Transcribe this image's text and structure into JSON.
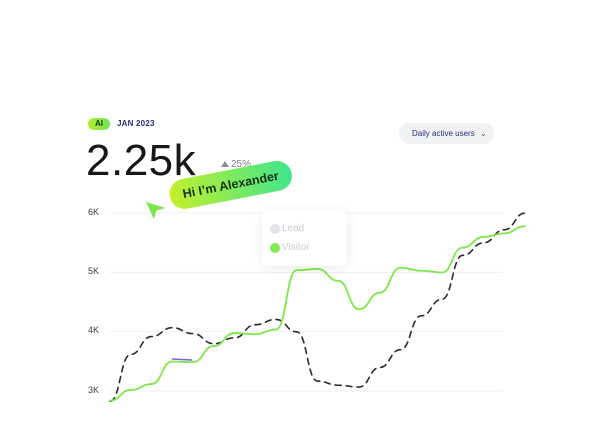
{
  "header": {
    "badge": "AI",
    "date": "JAN 2023",
    "metric_value": "2.25k",
    "delta": "25%"
  },
  "metric_dropdown": {
    "label": "Daily active users",
    "icon": "chevron-down-icon"
  },
  "tooltip": {
    "items": [
      {
        "label": "Lead",
        "color": "#e3e4e7"
      },
      {
        "label": "Visitor",
        "color": "#7ee84a"
      }
    ]
  },
  "cursor_label": "Hi I’m Alexander",
  "colors": {
    "accent": "#7ee84a",
    "lead": "#2b2b2f",
    "selection": "#6f6ad8"
  },
  "chart_data": {
    "type": "line",
    "y_ticks": [
      "6K",
      "5K",
      "4K",
      "3K"
    ],
    "ylim": [
      2800,
      6400
    ],
    "grid": true,
    "series": [
      {
        "name": "Lead",
        "style": "dashed",
        "color": "#2b2b2f",
        "x": [
          0,
          5,
          10,
          15,
          20,
          25,
          30,
          35,
          40,
          45,
          50,
          55,
          60,
          65,
          70,
          75,
          80,
          85,
          90,
          95,
          100
        ],
        "values": [
          2810,
          3600,
          3900,
          4050,
          3950,
          3780,
          3880,
          4100,
          4190,
          3980,
          3150,
          3080,
          3050,
          3380,
          3680,
          4250,
          4530,
          5270,
          5480,
          5700,
          5980
        ]
      },
      {
        "name": "Visitor",
        "style": "solid",
        "color": "#7ee84a",
        "x": [
          0,
          5,
          10,
          15,
          20,
          25,
          30,
          35,
          40,
          45,
          50,
          55,
          60,
          65,
          70,
          75,
          80,
          85,
          90,
          95,
          100
        ],
        "values": [
          2820,
          3000,
          3100,
          3480,
          3470,
          3740,
          3960,
          3940,
          4020,
          5020,
          5040,
          4840,
          4360,
          4640,
          5060,
          5010,
          4980,
          5400,
          5580,
          5640,
          5760
        ]
      }
    ]
  }
}
